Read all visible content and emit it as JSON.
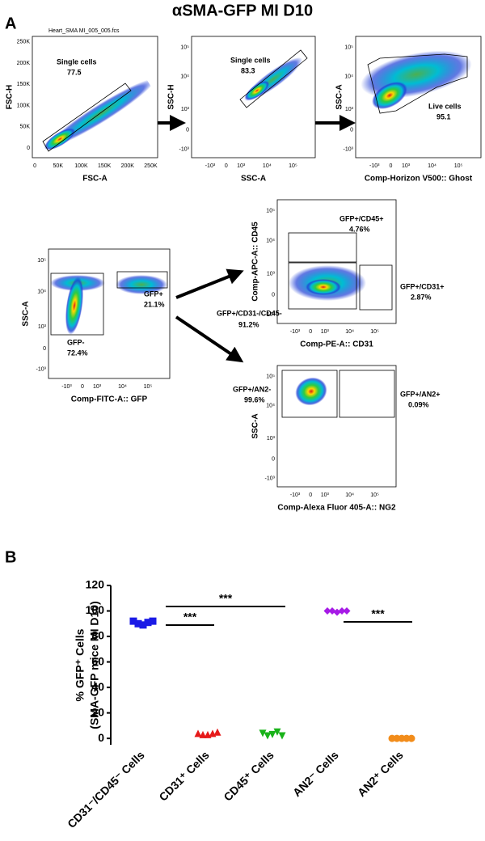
{
  "title": "αSMA-GFP MI D10",
  "panel_a": {
    "label": "A",
    "plots": [
      {
        "file": "Heart_SMA MI_005_005.fcs",
        "x_label": "FSC-A",
        "y_label": "FSC-H",
        "x_ticks": [
          "0",
          "50K",
          "100K",
          "150K",
          "200K",
          "250K"
        ],
        "y_ticks": [
          "0",
          "50K",
          "100K",
          "150K",
          "200K",
          "250K"
        ],
        "gates": [
          {
            "name": "Single cells",
            "value": "77.5"
          }
        ]
      },
      {
        "x_label": "SSC-A",
        "y_label": "SSC-H",
        "x_ticks": [
          "-10³",
          "0",
          "10³",
          "10⁴",
          "10⁵"
        ],
        "y_ticks": [
          "-10³",
          "0",
          "10³",
          "10⁴",
          "10⁵"
        ],
        "gates": [
          {
            "name": "Single cells",
            "value": "83.3"
          }
        ]
      },
      {
        "x_label": "Comp-Horizon V500:: Ghost",
        "y_label": "SSC-A",
        "x_ticks": [
          "-10³",
          "0",
          "10³",
          "10⁴",
          "10⁵"
        ],
        "y_ticks": [
          "-10³",
          "0",
          "10³",
          "10⁴",
          "10⁵"
        ],
        "gates": [
          {
            "name": "Live cells",
            "value": "95.1"
          }
        ]
      },
      {
        "x_label": "Comp-FITC-A:: GFP",
        "y_label": "SSC-A",
        "x_ticks": [
          "-10³",
          "0",
          "10³",
          "10⁴",
          "10⁵"
        ],
        "y_ticks": [
          "-10³",
          "0",
          "10³",
          "10⁴",
          "10⁵"
        ],
        "gates": [
          {
            "name": "GFP+",
            "value": "21.1%"
          },
          {
            "name": "GFP-",
            "value": "72.4%"
          }
        ]
      },
      {
        "x_label": "Comp-PE-A:: CD31",
        "y_label": "Comp-APC-A:: CD45",
        "x_ticks": [
          "-10³",
          "0",
          "10³",
          "10⁴",
          "10⁵"
        ],
        "y_ticks": [
          "-10³",
          "0",
          "10³",
          "10⁴",
          "10⁵"
        ],
        "gates": [
          {
            "name": "GFP+/CD45+",
            "value": "4.76%"
          },
          {
            "name": "GFP+/CD31+",
            "value": "2.87%"
          },
          {
            "name": "GFP+/CD31-/CD45-",
            "value": "91.2%"
          }
        ]
      },
      {
        "x_label": "Comp-Alexa Fluor 405-A:: NG2",
        "y_label": "SSC-A",
        "x_ticks": [
          "-10³",
          "0",
          "10³",
          "10⁴",
          "10⁵"
        ],
        "y_ticks": [
          "-10³",
          "0",
          "10³",
          "10⁴",
          "10⁵"
        ],
        "gates": [
          {
            "name": "GFP+/AN2-",
            "value": "99.6%"
          },
          {
            "name": "GFP+/AN2+",
            "value": "0.09%"
          }
        ]
      }
    ]
  },
  "chart_data": {
    "type": "dot",
    "panel_label": "B",
    "y_label": [
      "% GFP⁺ Cells",
      "(SMA-GFP mice MI D10)"
    ],
    "categories": [
      "CD31⁻/CD45⁻ Cells",
      "CD31⁺ Cells",
      "CD45⁺ Cells",
      "AN2⁻ Cells",
      "AN2⁺ Cells"
    ],
    "series": [
      {
        "color": "#1a1ae6",
        "marker": "square",
        "values": [
          92,
          90,
          89,
          91,
          92
        ]
      },
      {
        "color": "#e61a1a",
        "marker": "triangle-up",
        "values": [
          4,
          3,
          3,
          4,
          5
        ]
      },
      {
        "color": "#1ab31a",
        "marker": "triangle-down",
        "values": [
          4,
          2,
          3,
          5,
          2
        ]
      },
      {
        "color": "#a61ae6",
        "marker": "diamond",
        "values": [
          100,
          100,
          99,
          100,
          100
        ]
      },
      {
        "color": "#f28c1a",
        "marker": "circle",
        "values": [
          0,
          0,
          0,
          0,
          0
        ]
      }
    ],
    "ylim": [
      -5,
      120
    ],
    "yticks": [
      0,
      20,
      40,
      60,
      80,
      100,
      120
    ],
    "annotations": [
      "***",
      "***",
      "***"
    ]
  }
}
